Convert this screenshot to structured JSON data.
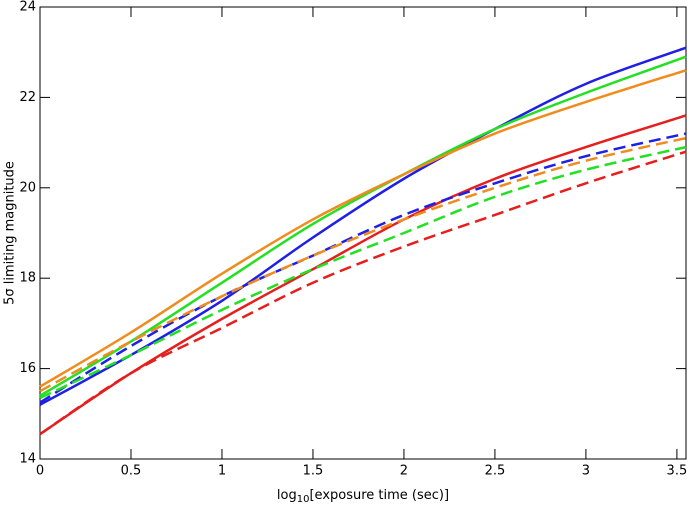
{
  "chart_data": {
    "type": "line",
    "xlabel": [
      "log",
      "10",
      "[exposure time (sec)]"
    ],
    "ylabel": "5σ limiting magnitude",
    "x": [
      0,
      0.5,
      1,
      1.5,
      2,
      2.5,
      3,
      3.55
    ],
    "xlim": [
      0,
      3.55
    ],
    "xticks": [
      0,
      0.5,
      1,
      1.5,
      2,
      2.5,
      3,
      3.5
    ],
    "ylim": [
      14,
      24
    ],
    "yticks": [
      14,
      16,
      18,
      20,
      22,
      24
    ],
    "series": [
      {
        "color": "#1f1fe6",
        "dash": false,
        "values": [
          15.2,
          16.3,
          17.5,
          18.9,
          20.2,
          21.3,
          22.3,
          23.1
        ]
      },
      {
        "color": "#22e022",
        "dash": false,
        "values": [
          15.4,
          16.6,
          17.9,
          19.2,
          20.3,
          21.3,
          22.1,
          22.9
        ]
      },
      {
        "color": "#f08c1e",
        "dash": false,
        "values": [
          15.6,
          16.8,
          18.1,
          19.3,
          20.3,
          21.2,
          21.9,
          22.6
        ]
      },
      {
        "color": "#e61e1e",
        "dash": false,
        "values": [
          14.55,
          15.9,
          17.1,
          18.2,
          19.3,
          20.2,
          20.9,
          21.6
        ]
      },
      {
        "color": "#1f1fe6",
        "dash": true,
        "values": [
          15.25,
          16.5,
          17.6,
          18.5,
          19.4,
          20.1,
          20.7,
          21.2
        ]
      },
      {
        "color": "#f08c1e",
        "dash": true,
        "values": [
          15.5,
          16.6,
          17.6,
          18.5,
          19.3,
          20.0,
          20.6,
          21.1
        ]
      },
      {
        "color": "#22e022",
        "dash": true,
        "values": [
          15.35,
          16.3,
          17.3,
          18.2,
          19.0,
          19.8,
          20.4,
          20.9
        ]
      },
      {
        "color": "#e61e1e",
        "dash": true,
        "values": [
          14.55,
          15.9,
          16.9,
          17.9,
          18.7,
          19.4,
          20.1,
          20.8
        ]
      }
    ]
  }
}
